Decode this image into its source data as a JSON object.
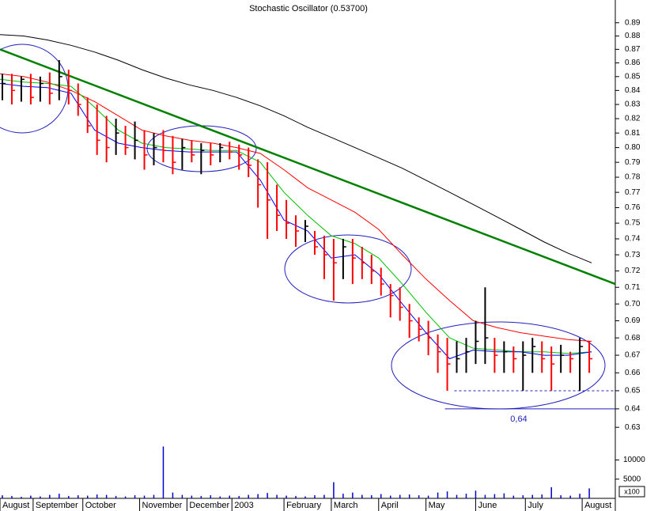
{
  "chart_data": [
    {
      "type": "ohlc",
      "title": "Stochastic Oscillator (0.53700)",
      "log_scale": true,
      "xlim": [
        0,
        260
      ],
      "ylim": [
        0.625,
        0.905
      ],
      "yticks": [
        0.63,
        0.64,
        0.65,
        0.66,
        0.67,
        0.68,
        0.69,
        {
          "value": 0.7,
          "label": "0.70"
        },
        0.71,
        0.72,
        0.73,
        0.74,
        0.75,
        0.76,
        0.77,
        0.78,
        0.79,
        {
          "value": 0.8,
          "label": "0.80"
        },
        0.81,
        0.82,
        0.83,
        0.84,
        0.85,
        0.86,
        0.87,
        0.88,
        0.89
      ],
      "up_color": "#000000",
      "down_color": "#ff0000",
      "x": [
        1,
        5,
        9,
        13,
        17,
        21,
        25,
        29,
        33,
        37,
        41,
        45,
        49,
        53,
        57,
        61,
        65,
        69,
        73,
        77,
        81,
        85,
        89,
        93,
        97,
        101,
        105,
        109,
        113,
        117,
        121,
        125,
        129,
        133,
        137,
        141,
        145,
        149,
        153,
        157,
        161,
        165,
        169,
        173,
        177,
        181,
        185,
        189,
        193,
        197,
        201,
        205,
        209,
        213,
        217,
        221,
        225,
        229,
        233,
        237,
        241,
        245,
        249
      ],
      "high": [
        0.852,
        0.852,
        0.85,
        0.852,
        0.85,
        0.853,
        0.862,
        0.855,
        0.845,
        0.835,
        0.83,
        0.822,
        0.82,
        0.815,
        0.818,
        0.812,
        0.81,
        0.812,
        0.808,
        0.806,
        0.805,
        0.803,
        0.803,
        0.803,
        0.804,
        0.802,
        0.8,
        0.792,
        0.79,
        0.775,
        0.765,
        0.755,
        0.752,
        0.745,
        0.742,
        0.74,
        0.74,
        0.74,
        0.735,
        0.73,
        0.722,
        0.712,
        0.71,
        0.7,
        0.692,
        0.69,
        0.682,
        0.68,
        0.678,
        0.68,
        0.69,
        0.71,
        0.68,
        0.678,
        0.675,
        0.678,
        0.68,
        0.678,
        0.675,
        0.676,
        0.672,
        0.68,
        0.678
      ],
      "low": [
        0.833,
        0.83,
        0.832,
        0.83,
        0.832,
        0.83,
        0.833,
        0.83,
        0.822,
        0.81,
        0.795,
        0.79,
        0.795,
        0.795,
        0.792,
        0.785,
        0.788,
        0.79,
        0.782,
        0.785,
        0.79,
        0.782,
        0.788,
        0.79,
        0.792,
        0.785,
        0.78,
        0.76,
        0.74,
        0.745,
        0.74,
        0.735,
        0.738,
        0.73,
        0.715,
        0.702,
        0.715,
        0.712,
        0.715,
        0.712,
        0.705,
        0.692,
        0.69,
        0.68,
        0.678,
        0.67,
        0.66,
        0.65,
        0.66,
        0.66,
        0.665,
        0.665,
        0.66,
        0.66,
        0.66,
        0.65,
        0.66,
        0.66,
        0.65,
        0.66,
        0.66,
        0.65,
        0.66
      ],
      "close": [
        0.845,
        0.84,
        0.848,
        0.835,
        0.845,
        0.838,
        0.85,
        0.84,
        0.83,
        0.815,
        0.805,
        0.8,
        0.81,
        0.8,
        0.805,
        0.795,
        0.8,
        0.798,
        0.79,
        0.8,
        0.795,
        0.798,
        0.795,
        0.8,
        0.797,
        0.795,
        0.788,
        0.775,
        0.765,
        0.755,
        0.75,
        0.745,
        0.748,
        0.735,
        0.73,
        0.725,
        0.735,
        0.728,
        0.725,
        0.72,
        0.712,
        0.705,
        0.698,
        0.69,
        0.685,
        0.68,
        0.672,
        0.665,
        0.668,
        0.672,
        0.678,
        0.68,
        0.67,
        0.672,
        0.668,
        0.67,
        0.675,
        0.668,
        0.665,
        0.67,
        0.668,
        0.675,
        0.668
      ],
      "lines": [
        {
          "color": "#000000",
          "x": [
            0,
            10,
            20,
            30,
            40,
            50,
            60,
            70,
            80,
            90,
            100,
            110,
            120,
            130,
            140,
            150,
            160,
            170,
            180,
            190,
            200,
            210,
            220,
            230,
            240,
            250
          ],
          "values": [
            0.881,
            0.88,
            0.877,
            0.873,
            0.868,
            0.862,
            0.855,
            0.849,
            0.844,
            0.84,
            0.835,
            0.829,
            0.822,
            0.814,
            0.807,
            0.8,
            0.793,
            0.786,
            0.778,
            0.77,
            0.762,
            0.754,
            0.746,
            0.738,
            0.731,
            0.725
          ]
        },
        {
          "color": "#ff0000",
          "x": [
            0,
            10,
            20,
            30,
            40,
            50,
            60,
            70,
            80,
            90,
            100,
            110,
            120,
            130,
            140,
            150,
            160,
            170,
            180,
            190,
            200,
            210,
            220,
            230,
            240,
            250
          ],
          "values": [
            0.852,
            0.85,
            0.846,
            0.84,
            0.832,
            0.822,
            0.812,
            0.808,
            0.805,
            0.803,
            0.8,
            0.796,
            0.785,
            0.773,
            0.765,
            0.757,
            0.746,
            0.73,
            0.715,
            0.702,
            0.69,
            0.686,
            0.683,
            0.681,
            0.679,
            0.678
          ]
        },
        {
          "color": "#00c000",
          "x": [
            0,
            10,
            20,
            30,
            40,
            50,
            60,
            70,
            80,
            90,
            100,
            110,
            120,
            130,
            140,
            150,
            160,
            170,
            180,
            190,
            200,
            210,
            220,
            230,
            240,
            250
          ],
          "values": [
            0.848,
            0.846,
            0.845,
            0.843,
            0.828,
            0.812,
            0.803,
            0.8,
            0.799,
            0.798,
            0.798,
            0.79,
            0.77,
            0.755,
            0.742,
            0.737,
            0.728,
            0.712,
            0.695,
            0.68,
            0.674,
            0.673,
            0.672,
            0.672,
            0.671,
            0.672
          ]
        },
        {
          "color": "#0000ff",
          "x": [
            0,
            10,
            20,
            30,
            40,
            50,
            60,
            70,
            80,
            90,
            100,
            110,
            120,
            130,
            140,
            150,
            160,
            170,
            180,
            190,
            200,
            210,
            220,
            230,
            240,
            250
          ],
          "values": [
            0.845,
            0.843,
            0.842,
            0.838,
            0.812,
            0.803,
            0.8,
            0.798,
            0.797,
            0.797,
            0.797,
            0.778,
            0.752,
            0.745,
            0.728,
            0.73,
            0.718,
            0.7,
            0.683,
            0.668,
            0.673,
            0.672,
            0.672,
            0.67,
            0.67,
            0.672
          ]
        }
      ],
      "trendline": {
        "color": "#008000",
        "x": [
          0,
          260
        ],
        "values": [
          0.87,
          0.712
        ]
      },
      "support_lines": [
        {
          "x": [
            188,
            260
          ],
          "value": 0.64,
          "label": "0,64"
        },
        {
          "x": [
            192,
            260
          ],
          "value": 0.65,
          "dashed": true
        }
      ]
    },
    {
      "type": "bar",
      "color": "#0000cc",
      "xlim": [
        0,
        260
      ],
      "ylim": [
        0,
        14000
      ],
      "yticks": [
        5000,
        10000
      ],
      "unit": "x100",
      "x": [
        1,
        5,
        9,
        13,
        17,
        21,
        25,
        29,
        33,
        37,
        41,
        45,
        49,
        53,
        57,
        61,
        65,
        69,
        73,
        77,
        81,
        85,
        89,
        93,
        97,
        101,
        105,
        109,
        113,
        117,
        121,
        125,
        129,
        133,
        137,
        141,
        145,
        149,
        153,
        157,
        161,
        165,
        169,
        173,
        177,
        181,
        185,
        189,
        193,
        197,
        201,
        205,
        209,
        213,
        217,
        221,
        225,
        229,
        233,
        237,
        241,
        245,
        249
      ],
      "values": [
        800,
        600,
        400,
        700,
        500,
        900,
        1200,
        600,
        800,
        700,
        1000,
        900,
        600,
        500,
        800,
        700,
        900,
        13500,
        1500,
        900,
        700,
        600,
        800,
        500,
        700,
        600,
        900,
        1100,
        1400,
        900,
        700,
        600,
        500,
        800,
        900,
        4200,
        1200,
        1500,
        900,
        800,
        1100,
        700,
        900,
        1000,
        800,
        700,
        1500,
        1800,
        900,
        1200,
        2000,
        900,
        1100,
        1300,
        700,
        800,
        900,
        1000,
        2900,
        800,
        700,
        1200,
        2600
      ],
      "xticks": [
        {
          "value": 0,
          "label": "August"
        },
        {
          "value": 14,
          "label": "September"
        },
        {
          "value": 35,
          "label": "October"
        },
        {
          "value": 59,
          "label": "November"
        },
        {
          "value": 79,
          "label": "December"
        },
        {
          "value": 98,
          "label": "2003"
        },
        {
          "value": 120,
          "label": "February"
        },
        {
          "value": 140,
          "label": "March"
        },
        {
          "value": 160,
          "label": "April"
        },
        {
          "value": 180,
          "label": "May"
        },
        {
          "value": 201,
          "label": "June"
        },
        {
          "value": 222,
          "label": "July"
        },
        {
          "value": 246,
          "label": "August"
        }
      ]
    }
  ]
}
